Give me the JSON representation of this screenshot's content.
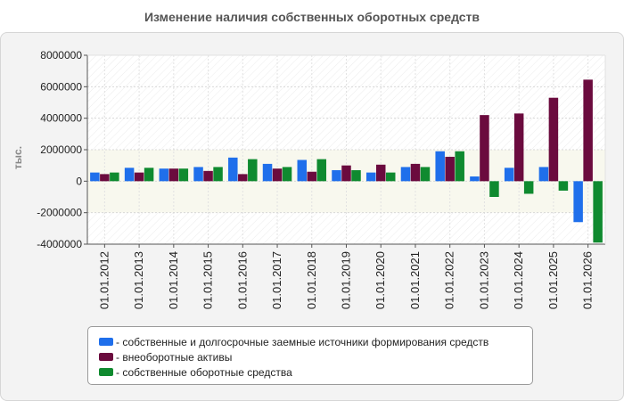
{
  "title": "Изменение наличия собственных оборотных средств",
  "chart_data": {
    "type": "bar",
    "ylabel": "тыс.",
    "xlabel": "",
    "ylim": [
      -4000000,
      8000000
    ],
    "yticks": [
      -4000000,
      -2000000,
      0,
      2000000,
      4000000,
      6000000,
      8000000
    ],
    "grid": true,
    "legend_position": "bottom",
    "categories": [
      "01.01.2012",
      "01.01.2013",
      "01.01.2014",
      "01.01.2015",
      "01.01.2016",
      "01.01.2017",
      "01.01.2018",
      "01.01.2019",
      "01.01.2020",
      "01.01.2021",
      "01.01.2022",
      "01.01.2023",
      "01.01.2024",
      "01.01.2025",
      "01.01.2026"
    ],
    "series": [
      {
        "name": "собственные и долгосрочные заемные источники формирования средств",
        "color": "#1f6feb",
        "values": [
          550000,
          850000,
          800000,
          900000,
          1500000,
          1100000,
          1350000,
          700000,
          550000,
          900000,
          1900000,
          300000,
          850000,
          900000,
          -2600000
        ]
      },
      {
        "name": "внеоборотные активы",
        "color": "#6b0b3e",
        "values": [
          450000,
          550000,
          800000,
          650000,
          450000,
          800000,
          600000,
          1000000,
          1050000,
          1100000,
          1550000,
          4200000,
          4300000,
          5300000,
          6450000
        ]
      },
      {
        "name": "собственные оборотные средства",
        "color": "#0f8a2f",
        "values": [
          550000,
          850000,
          800000,
          900000,
          1400000,
          900000,
          1400000,
          700000,
          550000,
          900000,
          1900000,
          -1000000,
          -800000,
          -600000,
          -3900000
        ]
      }
    ]
  }
}
